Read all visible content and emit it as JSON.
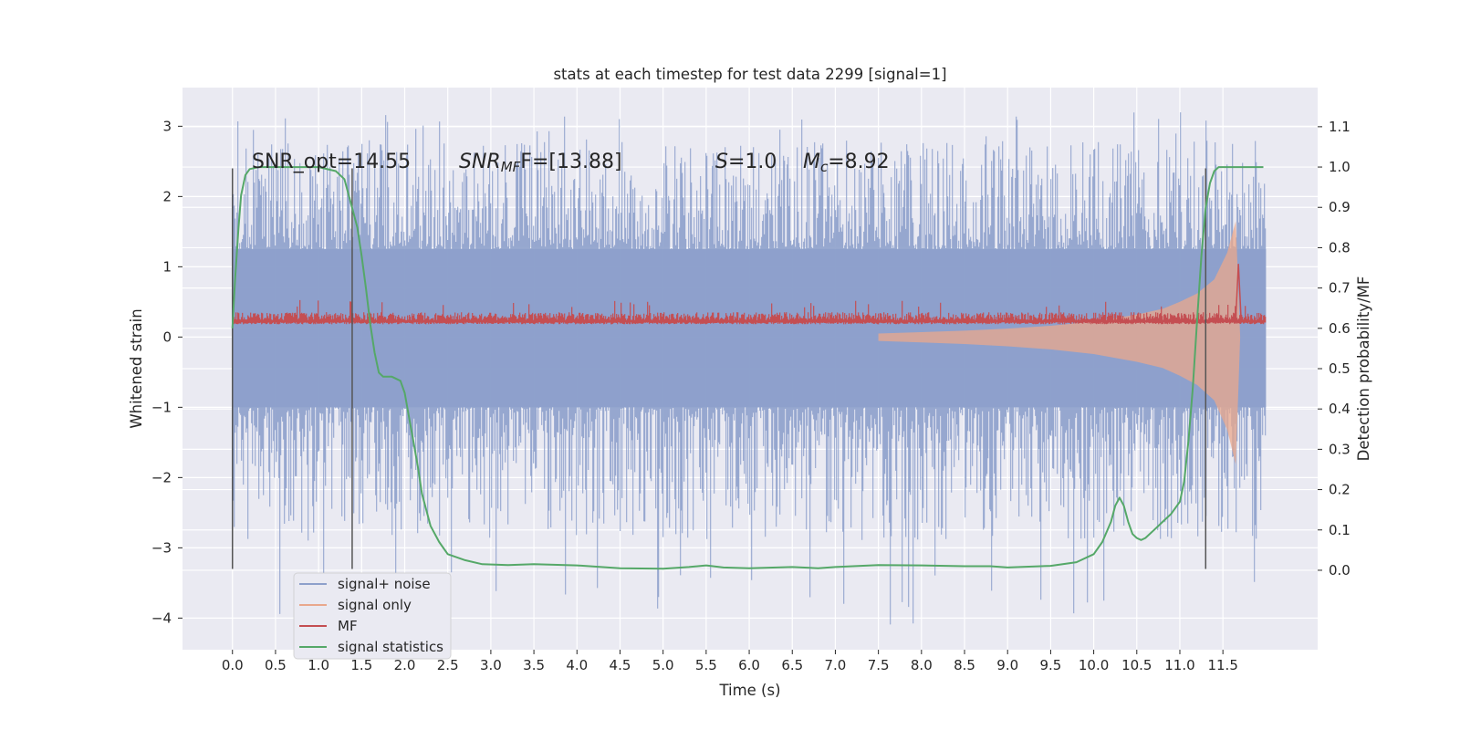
{
  "chart_data": {
    "type": "line",
    "title": "stats at each timestep for test data 2299 [signal=1]",
    "xlabel": "Time (s)",
    "ylabel": "Whitened strain",
    "ylabel_right": "Detection probability/MF",
    "xlim": [
      -0.58,
      12.6
    ],
    "ylim": [
      -4.45,
      3.55
    ],
    "ylim_right": [
      -0.197,
      1.197
    ],
    "x_ticks": [
      0.0,
      0.5,
      1.0,
      1.5,
      2.0,
      2.5,
      3.0,
      3.5,
      4.0,
      4.5,
      5.0,
      5.5,
      6.0,
      6.5,
      7.0,
      7.5,
      8.0,
      8.5,
      9.0,
      9.5,
      10.0,
      10.5,
      11.0,
      11.5
    ],
    "x_tick_labels": [
      "0.0",
      "0.5",
      "1.0",
      "1.5",
      "2.0",
      "2.5",
      "3.0",
      "3.5",
      "4.0",
      "4.5",
      "5.0",
      "5.5",
      "6.0",
      "6.5",
      "7.0",
      "7.5",
      "8.0",
      "8.5",
      "9.0",
      "9.5",
      "10.0",
      "10.5",
      "11.0",
      "11.5"
    ],
    "y_ticks": [
      -4,
      -3,
      -2,
      -1,
      0,
      1,
      2,
      3
    ],
    "y_tick_labels": [
      "−4",
      "−3",
      "−2",
      "−1",
      "0",
      "1",
      "2",
      "3"
    ],
    "y_right_ticks": [
      0.0,
      0.1,
      0.2,
      0.3,
      0.4,
      0.5,
      0.6,
      0.7,
      0.8,
      0.9,
      1.0,
      1.1
    ],
    "y_right_tick_labels": [
      "0.0",
      "0.1",
      "0.2",
      "0.3",
      "0.4",
      "0.5",
      "0.6",
      "0.7",
      "0.8",
      "0.9",
      "1.0",
      "1.1"
    ],
    "grid": true,
    "legend_position": "lower-left",
    "annotations": {
      "snr_opt": "SNR_opt=14.55",
      "snr_mf_main": "SNR",
      "snr_mf_sub": "MF",
      "snr_mf_rest": "F=[13.88]",
      "s_label": "S",
      "s_value": "=1.0",
      "mc_label": "M",
      "mc_sub": "c",
      "mc_value": "=8.92"
    },
    "vertical_markers": [
      {
        "x": 0.0,
        "y_range": [
          -3.3,
          2.4
        ]
      },
      {
        "x": 1.39,
        "y_range": [
          -3.3,
          2.4
        ]
      },
      {
        "x": 11.3,
        "y_range": [
          -3.3,
          2.4
        ]
      }
    ],
    "series": [
      {
        "name": "signal+ noise",
        "color": "#8da0cb",
        "kind": "noise-band",
        "x_range": [
          0.0,
          12.0
        ],
        "core_upper": 1.25,
        "core_lower": -1.0,
        "spike_max": 3.2,
        "spike_min": -4.1
      },
      {
        "name": "signal only",
        "color": "#e9a88c",
        "kind": "chirp-envelope",
        "x": [
          7.5,
          8.0,
          8.5,
          9.0,
          9.5,
          10.0,
          10.5,
          10.8,
          11.0,
          11.2,
          11.4,
          11.55,
          11.65,
          11.7
        ],
        "amplitude": [
          0.05,
          0.07,
          0.09,
          0.12,
          0.16,
          0.22,
          0.32,
          0.4,
          0.5,
          0.62,
          0.82,
          1.2,
          1.65,
          0.0
        ]
      },
      {
        "name": "MF",
        "color": "#c44e52",
        "kind": "matched-filter",
        "x_range": [
          0.0,
          12.0
        ],
        "baseline": 0.62,
        "noise_amplitude": 0.02,
        "peak_x": 11.68,
        "peak_value": 0.76,
        "axis": "right"
      },
      {
        "name": "signal statistics",
        "color": "#55a868",
        "kind": "line",
        "axis": "right",
        "x": [
          0.0,
          0.03,
          0.07,
          0.1,
          0.15,
          0.2,
          0.3,
          0.5,
          0.8,
          1.0,
          1.2,
          1.3,
          1.35,
          1.45,
          1.5,
          1.55,
          1.6,
          1.65,
          1.7,
          1.75,
          1.85,
          1.95,
          2.0,
          2.05,
          2.1,
          2.15,
          2.2,
          2.3,
          2.4,
          2.5,
          2.7,
          2.9,
          3.2,
          3.5,
          4.0,
          4.5,
          5.0,
          5.3,
          5.5,
          5.7,
          6.0,
          6.5,
          6.8,
          7.0,
          7.5,
          8.0,
          8.5,
          8.8,
          9.0,
          9.5,
          9.8,
          10.0,
          10.1,
          10.2,
          10.25,
          10.3,
          10.35,
          10.4,
          10.45,
          10.5,
          10.55,
          10.6,
          10.7,
          10.8,
          10.9,
          11.0,
          11.05,
          11.1,
          11.15,
          11.2,
          11.25,
          11.3,
          11.35,
          11.4,
          11.45,
          11.5,
          11.6,
          11.7,
          11.8,
          11.9,
          11.97
        ],
        "values": [
          0.6,
          0.72,
          0.85,
          0.93,
          0.98,
          0.995,
          1.0,
          1.0,
          1.0,
          1.0,
          0.99,
          0.97,
          0.93,
          0.85,
          0.78,
          0.7,
          0.61,
          0.54,
          0.49,
          0.48,
          0.48,
          0.47,
          0.44,
          0.38,
          0.32,
          0.26,
          0.19,
          0.11,
          0.07,
          0.04,
          0.025,
          0.015,
          0.013,
          0.015,
          0.012,
          0.005,
          0.004,
          0.008,
          0.012,
          0.007,
          0.005,
          0.008,
          0.005,
          0.008,
          0.013,
          0.012,
          0.01,
          0.01,
          0.007,
          0.011,
          0.02,
          0.04,
          0.07,
          0.12,
          0.16,
          0.18,
          0.16,
          0.12,
          0.09,
          0.08,
          0.075,
          0.08,
          0.1,
          0.12,
          0.14,
          0.17,
          0.22,
          0.32,
          0.45,
          0.62,
          0.78,
          0.9,
          0.96,
          0.99,
          1.0,
          1.0,
          1.0,
          1.0,
          1.0,
          1.0,
          1.0
        ]
      }
    ],
    "legend_labels": [
      "signal+ noise",
      "signal only",
      "MF",
      "signal statistics"
    ]
  }
}
